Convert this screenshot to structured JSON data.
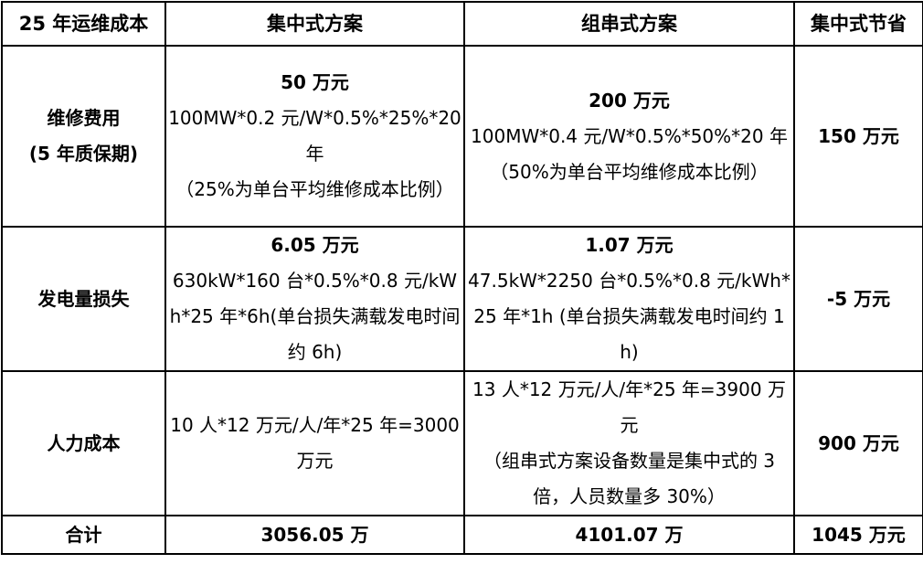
{
  "table": {
    "header": [
      "25 年运维成本",
      "集中式方案",
      "组串式方案",
      "集中式节省"
    ],
    "rows": [
      {
        "item": [
          "维修费用",
          "(5 年质保期)"
        ],
        "centralized": {
          "total": "50 万元",
          "details": [
            "100MW*0.2 元/W*0.5%*25%*20 年",
            "（25%为单台平均维修成本比例）"
          ]
        },
        "string": {
          "total": "200 万元",
          "details": [
            "100MW*0.4 元/W*0.5%*50%*20 年",
            "（50%为单台平均维修成本比例）"
          ]
        },
        "saving": "150 万元"
      },
      {
        "item": [
          "发电量损失"
        ],
        "centralized": {
          "total": "6.05 万元",
          "details": [
            "630kW*160 台*0.5%*0.8 元/kWh*25 年*6h(单台损失满载发电时间约 6h)"
          ]
        },
        "string": {
          "total": "1.07 万元",
          "details": [
            "47.5kW*2250 台*0.5%*0.8 元/kWh*25 年*1h (单台损失满载发电时间约 1h)"
          ]
        },
        "saving": "-5 万元"
      },
      {
        "item": [
          "人力成本"
        ],
        "centralized": {
          "details": [
            "10 人*12 万元/人/年*25 年=3000 万元"
          ]
        },
        "string": {
          "details": [
            "13 人*12 万元/人/年*25 年=3900 万元",
            "（组串式方案设备数量是集中式的 3 倍，人员数量多 30%）"
          ]
        },
        "saving": "900 万元"
      }
    ],
    "total": [
      "合计",
      "3056.05 万",
      "4101.07 万",
      "1045 万元"
    ]
  }
}
